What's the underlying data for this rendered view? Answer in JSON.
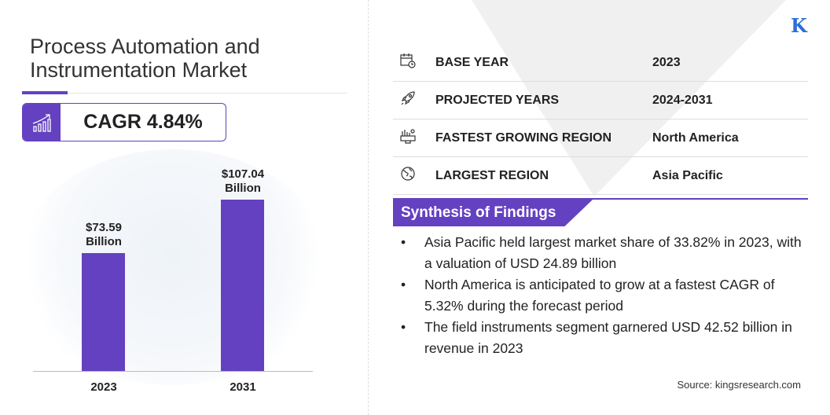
{
  "title": "Process Automation and Instrumentation Market",
  "cagr": "CAGR 4.84%",
  "logo": "K",
  "colors": {
    "accent": "#6441c0",
    "logo": "#2a6fd6"
  },
  "chart_data": {
    "type": "bar",
    "categories": [
      "2023",
      "2031"
    ],
    "values": [
      73.59,
      107.04
    ],
    "data_labels": [
      [
        "$73.59",
        "Billion"
      ],
      [
        "$107.04",
        "Billion"
      ]
    ],
    "unit": "USD Billion",
    "grid": false
  },
  "facts": [
    {
      "icon": "calendar-clock-icon",
      "label": "BASE YEAR",
      "value": "2023"
    },
    {
      "icon": "rocket-icon",
      "label": "PROJECTED YEARS",
      "value": "2024-2031"
    },
    {
      "icon": "growth-region-icon",
      "label": "FASTEST GROWING REGION",
      "value": "North America"
    },
    {
      "icon": "globe-icon",
      "label": "LARGEST REGION",
      "value": "Asia Pacific"
    }
  ],
  "synthesis": {
    "heading": "Synthesis of Findings",
    "bullets": [
      "Asia Pacific held largest market share of 33.82% in 2023, with a valuation of USD 24.89 billion",
      "North America is anticipated to grow at a fastest CAGR of 5.32% during the forecast period",
      "The field instruments segment garnered USD 42.52 billion in revenue in 2023"
    ]
  },
  "source": "Source:  kingsresearch.com"
}
